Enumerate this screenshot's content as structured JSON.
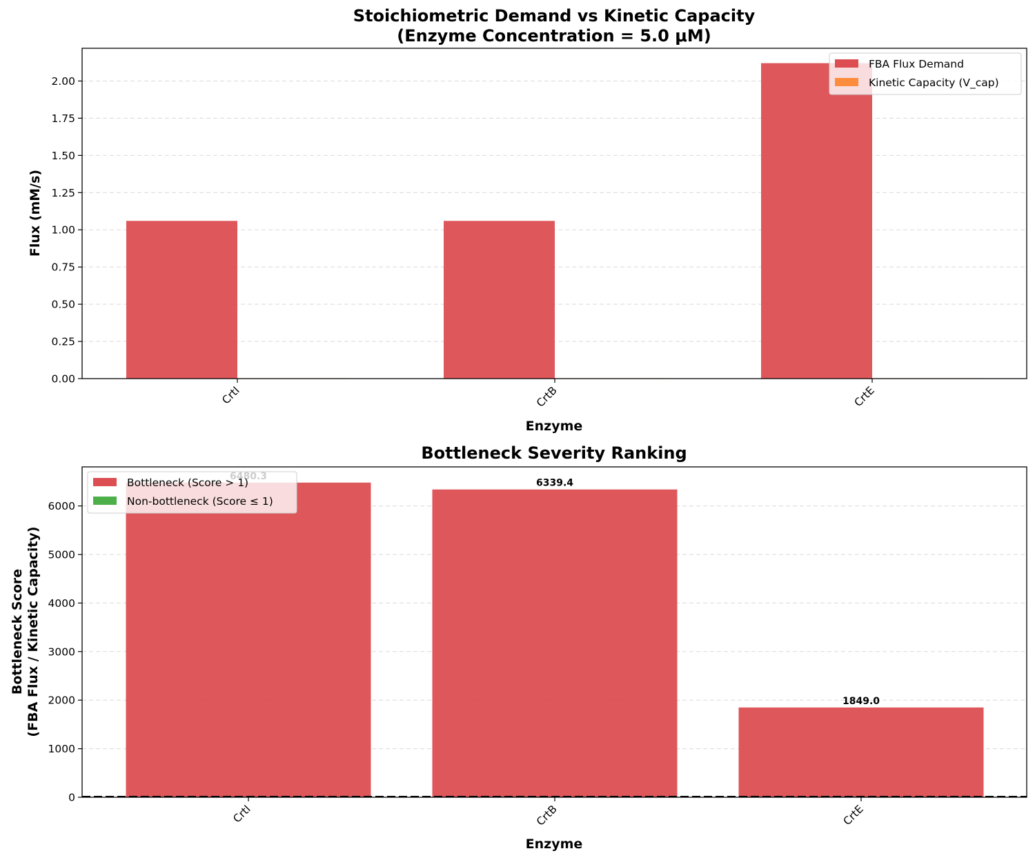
{
  "colors": {
    "demand": "#dc4e52",
    "capacity": "#fd8d3c",
    "bottleneck": "#dc4e52",
    "non_bottleneck": "#4daf4a",
    "grid": "#d9d9d9",
    "axis": "#000000"
  },
  "chart_data": [
    {
      "type": "bar",
      "title": "Stoichiometric Demand vs Kinetic Capacity",
      "subtitle": "(Enzyme Concentration = 5.0 μM)",
      "xlabel": "Enzyme",
      "ylabel": "Flux (mM/s)",
      "categories": [
        "CrtI",
        "CrtB",
        "CrtE"
      ],
      "series": [
        {
          "name": "FBA Flux Demand",
          "values": [
            1.06,
            1.06,
            2.12
          ],
          "color": "#dc4e52"
        },
        {
          "name": "Kinetic Capacity (V_cap)",
          "values": [
            0.0002,
            0.0002,
            0.0011
          ],
          "color": "#fd8d3c"
        }
      ],
      "ylim": [
        0,
        2.22
      ],
      "yticks": [
        "0.00",
        "0.25",
        "0.50",
        "0.75",
        "1.00",
        "1.25",
        "1.50",
        "1.75",
        "2.00"
      ],
      "grid": true,
      "legend": "top-right"
    },
    {
      "type": "bar",
      "title": "Bottleneck Severity Ranking",
      "xlabel": "Enzyme",
      "ylabel": [
        "Bottleneck Score",
        "(FBA Flux / Kinetic Capacity)"
      ],
      "categories": [
        "CrtI",
        "CrtB",
        "CrtE"
      ],
      "values": [
        6480.3,
        6339.4,
        1849.0
      ],
      "value_labels": [
        "6480.3",
        "6339.4",
        "1849.0"
      ],
      "ylim": [
        0,
        6804
      ],
      "yticks": [
        "0",
        "1000",
        "2000",
        "3000",
        "4000",
        "5000",
        "6000"
      ],
      "threshold": 1,
      "legend_entries": [
        {
          "name": "Bottleneck (Score > 1)",
          "color": "#dc4e52"
        },
        {
          "name": "Non-bottleneck (Score ≤ 1)",
          "color": "#4daf4a"
        }
      ],
      "grid": true,
      "legend": "top-left"
    }
  ]
}
